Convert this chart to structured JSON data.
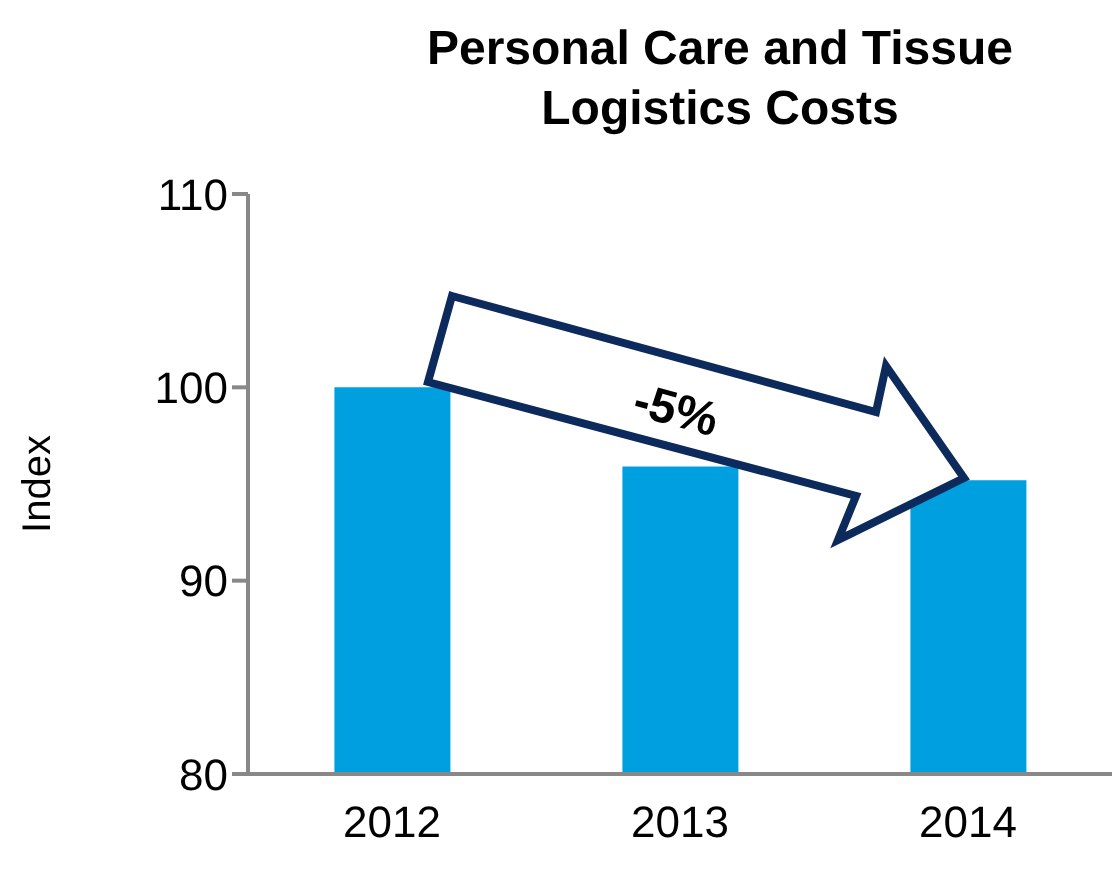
{
  "chart_data": {
    "type": "bar",
    "title": "Personal Care and Tissue Logistics Costs",
    "ylabel": "Index",
    "categories": [
      "2012",
      "2013",
      "2014"
    ],
    "values": [
      100,
      95.9,
      95.2
    ],
    "color": "#009fdf",
    "ylim": [
      80,
      110
    ],
    "yticks": [
      80,
      90,
      100,
      110
    ],
    "annotations": [
      "-5%"
    ]
  }
}
